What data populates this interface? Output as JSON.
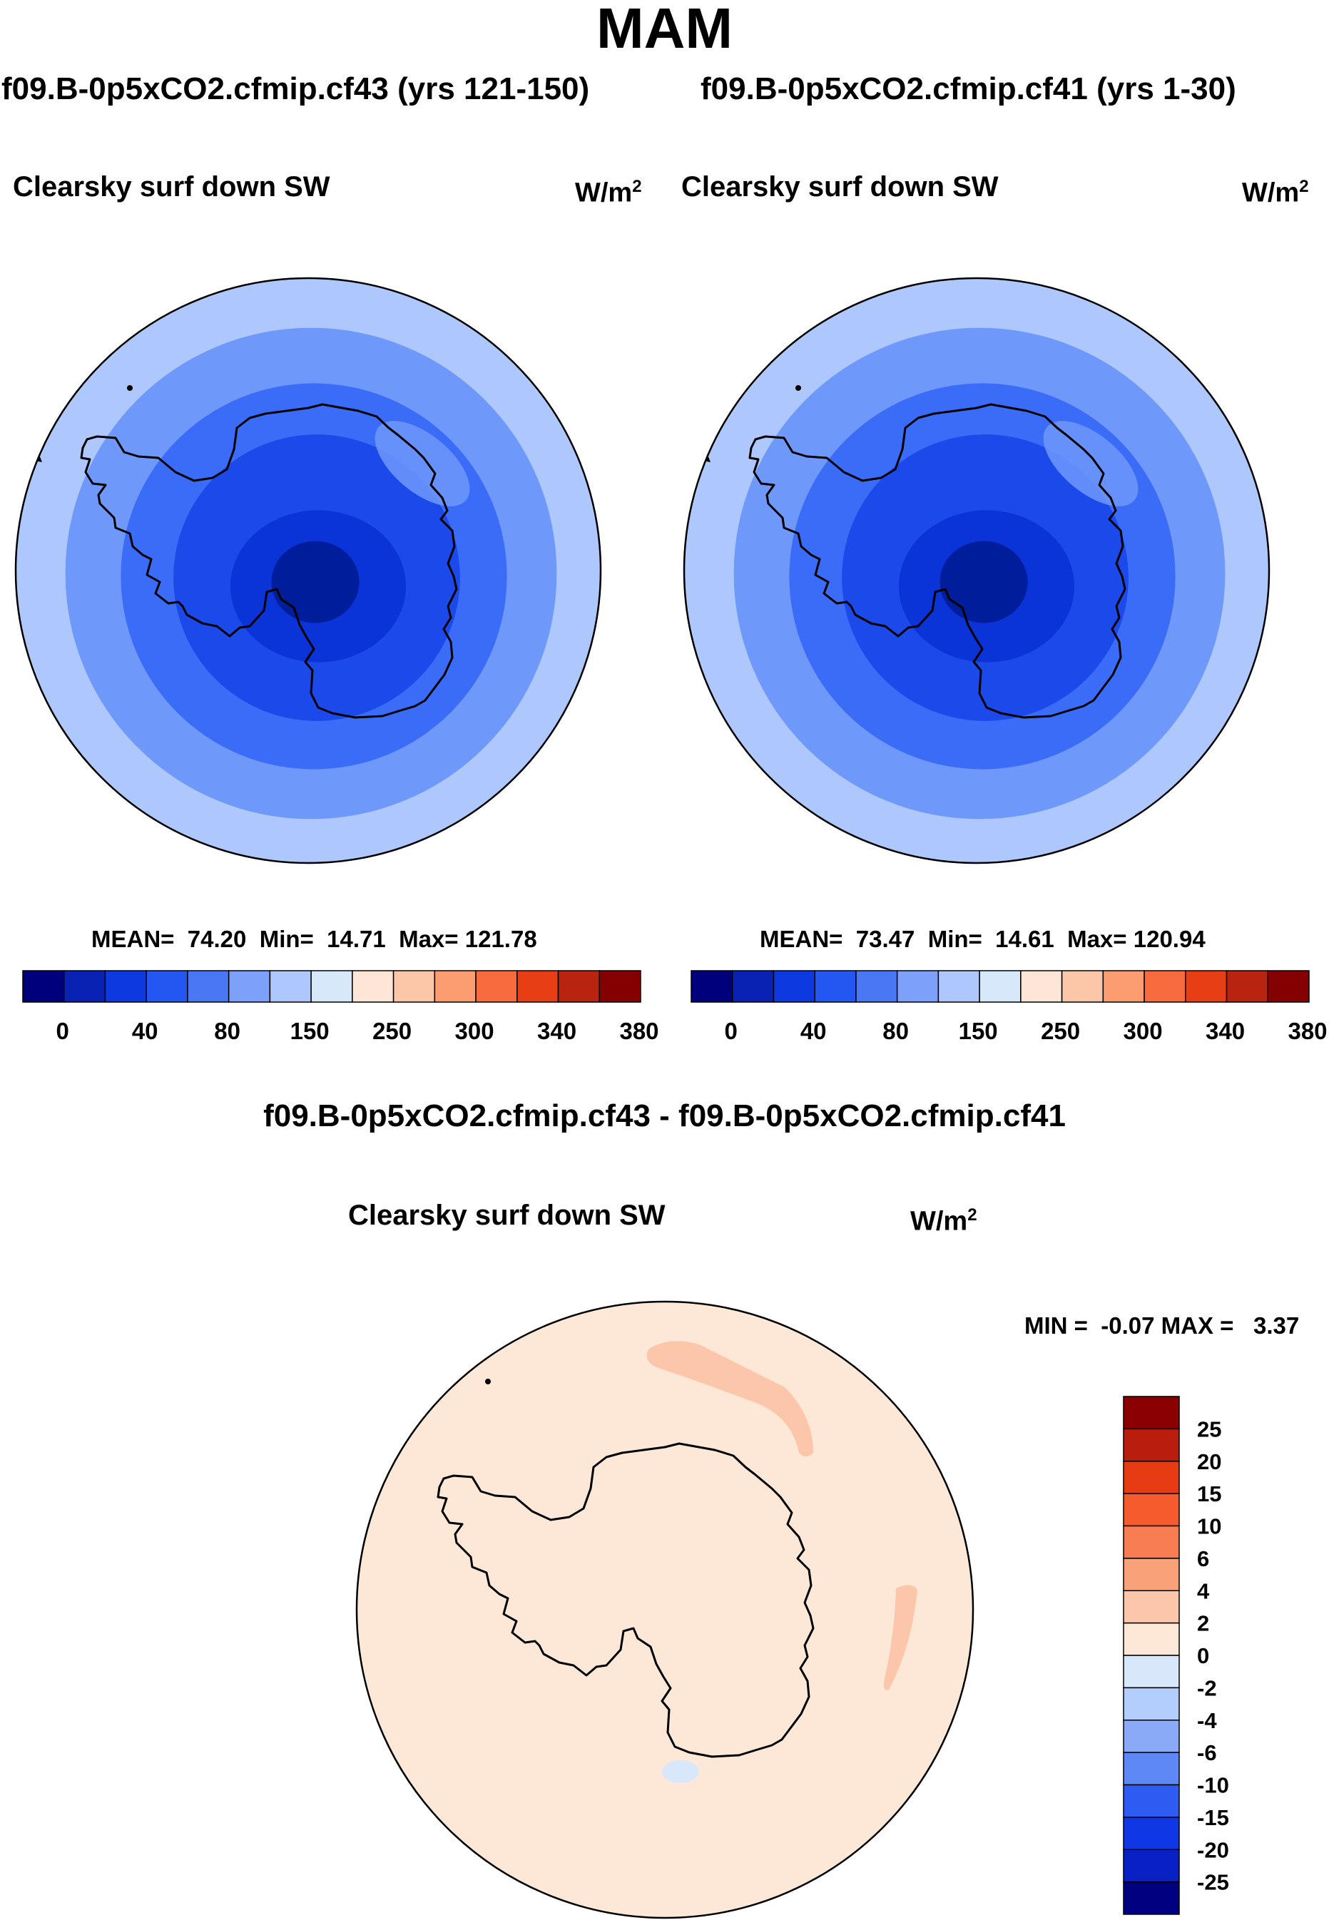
{
  "page_title": "MAM",
  "chart_data": [
    {
      "type": "heatmap",
      "projection": "south-polar-stereographic",
      "title": "f09.B-0p5xCO2.cfmip.cf43 (yrs 121-150)",
      "variable": "Clearsky surf down SW",
      "units_base": "W/m",
      "units_exp": "2",
      "stats": {
        "mean_label": "MEAN=",
        "mean": "74.20",
        "min_label": "Min=",
        "min": "14.71",
        "max_label": "Max=",
        "max": "121.78"
      },
      "colorbar_ticks": [
        "0",
        "40",
        "80",
        "150",
        "250",
        "300",
        "340",
        "380"
      ],
      "contour_levels_visible": [
        "0",
        "20",
        "40",
        "60",
        "80",
        "100",
        "120"
      ],
      "shading": [
        "#0a2cc9",
        "#1c4aea",
        "#3a6cf7",
        "#6f98fb",
        "#aec8fd"
      ]
    },
    {
      "type": "heatmap",
      "projection": "south-polar-stereographic",
      "title": "f09.B-0p5xCO2.cfmip.cf41 (yrs 1-30)",
      "variable": "Clearsky surf down SW",
      "units_base": "W/m",
      "units_exp": "2",
      "stats": {
        "mean_label": "MEAN=",
        "mean": "73.47",
        "min_label": "Min=",
        "min": "14.61",
        "max_label": "Max=",
        "max": "120.94"
      },
      "colorbar_ticks": [
        "0",
        "40",
        "80",
        "150",
        "250",
        "300",
        "340",
        "380"
      ],
      "shading": [
        "#0a2cc9",
        "#1c4aea",
        "#3a6cf7",
        "#6f98fb",
        "#aec8fd"
      ]
    },
    {
      "type": "heatmap",
      "projection": "south-polar-stereographic",
      "title": "f09.B-0p5xCO2.cfmip.cf43 - f09.B-0p5xCO2.cfmip.cf41",
      "variable": "Clearsky surf down SW",
      "units_base": "W/m",
      "units_exp": "2",
      "stats": {
        "min_label": "MIN =",
        "min": "-0.07",
        "max_label": "MAX =",
        "max": "3.37"
      },
      "colorbar_ticks": [
        "25",
        "20",
        "15",
        "10",
        "6",
        "4",
        "2",
        "0",
        "-2",
        "-4",
        "-6",
        "-10",
        "-15",
        "-20",
        "-25"
      ],
      "dominant_range": [
        "0",
        "2"
      ],
      "patches": [
        {
          "range": [
            "2",
            "4"
          ],
          "region": "off Queen Maud Land coast"
        },
        {
          "range": [
            "2",
            "4"
          ],
          "region": "off Wilkes Land coast"
        },
        {
          "range": [
            "-2",
            "0"
          ],
          "region": "Ross Ice Shelf"
        }
      ]
    }
  ],
  "colors": {
    "horizontal_bar": [
      "#00007d",
      "#0a22b4",
      "#0c3ae0",
      "#2456f2",
      "#4a78f5",
      "#7da0fa",
      "#aec8fd",
      "#d8e8fb",
      "#fde6d6",
      "#fcc6a8",
      "#fb9d70",
      "#f76b3f",
      "#e73e15",
      "#b82410",
      "#850000"
    ],
    "vertical_bar": [
      "#8b0000",
      "#b81d0d",
      "#e63b13",
      "#f55b2c",
      "#f87d52",
      "#f9a27a",
      "#fbc6a9",
      "#fde8d8",
      "#d8e8fa",
      "#b3cdfc",
      "#8aaaf8",
      "#5d88f5",
      "#2e5cf2",
      "#1037e6",
      "#0820c4",
      "#000080"
    ],
    "diff_background": "#fde8d8",
    "diff_positive": "#fbc6a9",
    "diff_negative": "#d8e8fa"
  }
}
